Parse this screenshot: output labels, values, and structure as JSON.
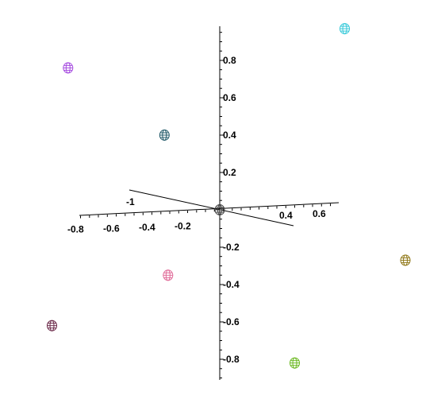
{
  "chart_data": {
    "type": "scatter",
    "title": "",
    "xlabel": "",
    "ylabel": "",
    "zlabel": "",
    "x_axis": {
      "ticks": [
        "-0.8",
        "-0.6",
        "-0.4",
        "-0.2"
      ]
    },
    "y_axis": {
      "ticks": [
        "-0.8",
        "-0.6",
        "-0.4",
        "-0.2",
        "0.2",
        "0.4",
        "0.6",
        "0.8"
      ]
    },
    "z_axis": {
      "ticks": [
        "-1",
        "0.4",
        "0.6"
      ]
    },
    "points": [
      {
        "x": 0.0,
        "y": 0.0,
        "color": "#404040"
      },
      {
        "x": 0.7,
        "y": 0.97,
        "color": "#33c8d8"
      },
      {
        "x": -0.85,
        "y": 0.76,
        "color": "#a64ce0"
      },
      {
        "x": -0.31,
        "y": 0.4,
        "color": "#205868"
      },
      {
        "x": -0.29,
        "y": -0.35,
        "color": "#e06a98"
      },
      {
        "x": 1.04,
        "y": -0.27,
        "color": "#907818"
      },
      {
        "x": -0.94,
        "y": -0.62,
        "color": "#6a2848"
      },
      {
        "x": 0.42,
        "y": -0.82,
        "color": "#6ab820"
      }
    ]
  }
}
